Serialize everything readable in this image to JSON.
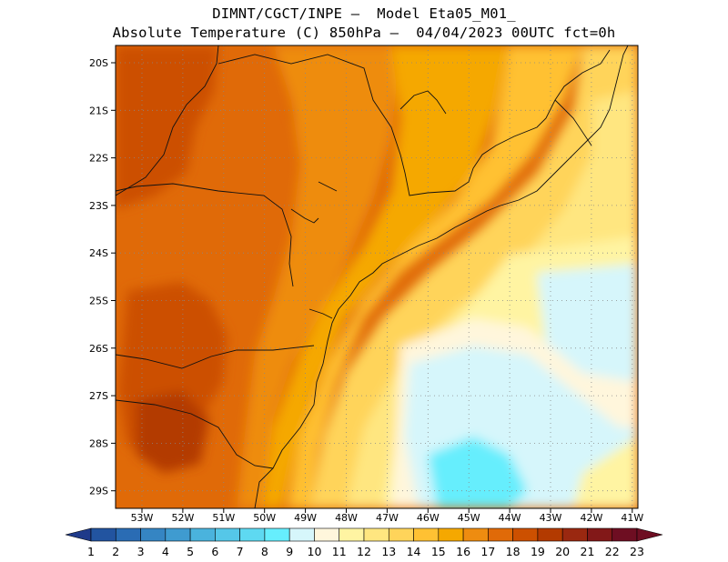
{
  "header": {
    "title_line1": "DIMNT/CGCT/INPE —  Model Eta05_M01_",
    "title_line2": "Absolute Temperature (C) 850hPa —  04/04/2023 00UTC fct=0h"
  },
  "map": {
    "lat_labels": [
      "20S",
      "21S",
      "22S",
      "23S",
      "24S",
      "25S",
      "26S",
      "27S",
      "28S",
      "29S"
    ],
    "lon_labels": [
      "53W",
      "52W",
      "51W",
      "50W",
      "49W",
      "48W",
      "47W",
      "46W",
      "45W",
      "44W",
      "43W",
      "42W",
      "41W"
    ]
  },
  "colorbar": {
    "labels": [
      "1",
      "2",
      "3",
      "4",
      "5",
      "6",
      "7",
      "8",
      "9",
      "10",
      "11",
      "12",
      "13",
      "14",
      "15",
      "16",
      "17",
      "18",
      "19",
      "20",
      "21",
      "22",
      "23"
    ],
    "colors": [
      "#1f3a8a",
      "#2254a0",
      "#2a6cb4",
      "#3585c3",
      "#3f9bd0",
      "#4ab3dd",
      "#55c7e8",
      "#5ed9f1",
      "#66eefd",
      "#d6f6fb",
      "#fff6dc",
      "#fff4a2",
      "#ffe680",
      "#ffd45a",
      "#ffc133",
      "#f5a800",
      "#ee8c10",
      "#e06a08",
      "#cc5000",
      "#b33a00",
      "#9a2810",
      "#821818",
      "#6e0e22"
    ]
  }
}
